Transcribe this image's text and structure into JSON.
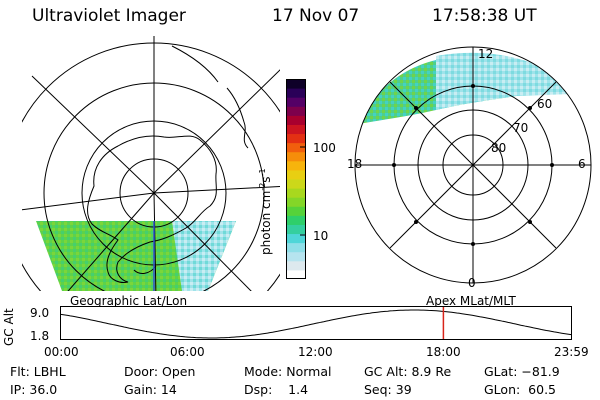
{
  "header": {
    "instrument": "Ultraviolet Imager",
    "date": "17 Nov 07",
    "time": "17:58:38 UT"
  },
  "colorbar": {
    "unit_label": "photon cm",
    "unit_sup1": "-2",
    "unit_mid": "s",
    "unit_sup2": "-1",
    "ticks": [
      "100",
      "10"
    ],
    "colors": [
      "#ffffff",
      "#dde9ee",
      "#b6e4ef",
      "#8fdfe8",
      "#4fd6d8",
      "#35cf9f",
      "#2fcf6a",
      "#56d23a",
      "#84d628",
      "#a8d81e",
      "#ccd81a",
      "#e8cf12",
      "#f7b40c",
      "#f68d0a",
      "#f15f0d",
      "#e33013",
      "#cc1420",
      "#a8002e",
      "#7d004c",
      "#540066",
      "#2a0058",
      "#0e0028"
    ]
  },
  "left_map": {
    "label": "Geographic Lat/Lon"
  },
  "right_map": {
    "label": "Apex MLat/MLT",
    "mlt_labels": {
      "top": "12",
      "left": "18",
      "right": "6",
      "bottom": "0"
    },
    "lat_labels": [
      "60",
      "70",
      "80"
    ]
  },
  "altitude_plot": {
    "ylabel": "GC Alt",
    "y_ticks": [
      "9.0",
      "1.8"
    ],
    "x_ticks": [
      "00:00",
      "06:00",
      "12:00",
      "18:00",
      "23:59"
    ],
    "current_time_hours": 17.97,
    "curve_color": "#000000",
    "marker_color": "#d8241a"
  },
  "status": {
    "flt": "Flt: LBHL",
    "ip": "IP: 36.0",
    "door": "Door: Open",
    "gain": "Gain: 14",
    "mode": "Mode: Normal",
    "dsp": "Dsp:    1.4",
    "gc_alt": "GC Alt: 8.9 Re",
    "seq": "Seq: 39",
    "glat": "GLat: −81.9",
    "glon": "GLon:  60.5"
  }
}
